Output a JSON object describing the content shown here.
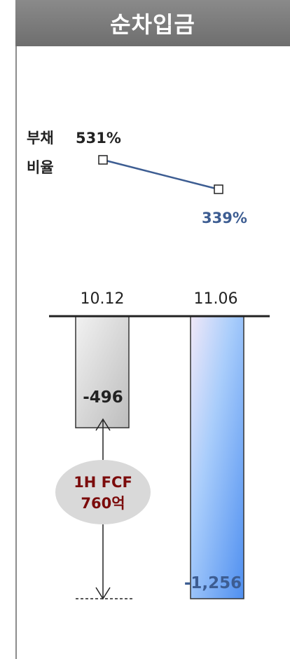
{
  "header": {
    "title": "순차입금"
  },
  "debt_ratio": {
    "label_line1": "부채",
    "label_line2": "비율",
    "start_label": "531%",
    "end_label": "339%",
    "line_color": "#3d5d92"
  },
  "fcf_callout": {
    "line1": "1H FCF",
    "line2": "760억",
    "text_color": "#7b0b0b"
  },
  "colors": {
    "bar1": "#d8d8d8",
    "bar2": "#7fb4f7",
    "bar2_label": "#3d5d92"
  },
  "chart_data": [
    {
      "type": "line",
      "categories": [
        "10.12",
        "11.06"
      ],
      "values": [
        531,
        339
      ],
      "title": "",
      "xlabel": "",
      "ylabel": "",
      "ylim": [
        300,
        560
      ]
    },
    {
      "type": "bar",
      "categories": [
        "10.12",
        "11.06"
      ],
      "values": [
        -496,
        -1256
      ],
      "value_labels": [
        "-496",
        "-1,256"
      ],
      "title": "순차입금",
      "xlabel": "",
      "ylabel": "",
      "ylim": [
        -1256,
        0
      ]
    }
  ]
}
